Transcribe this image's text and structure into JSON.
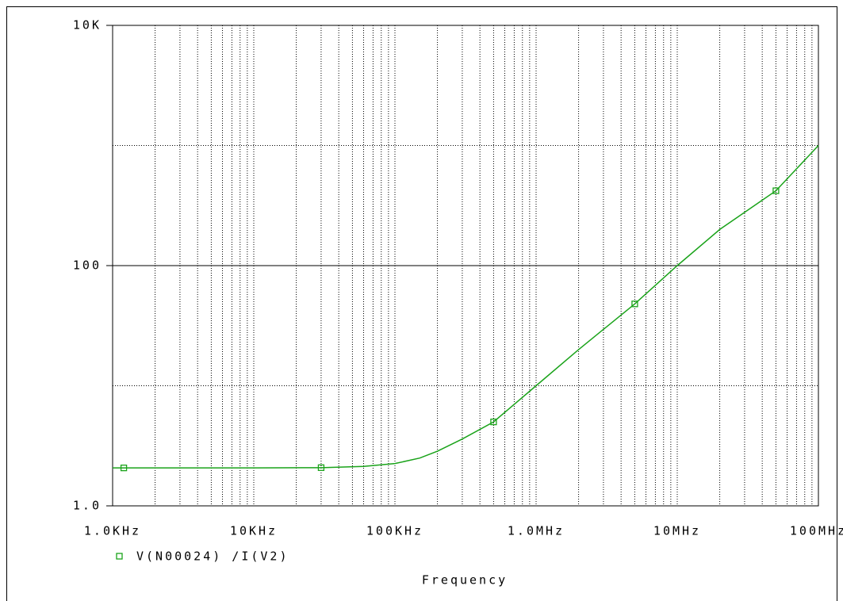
{
  "chart_data": {
    "type": "line",
    "xlabel": "Frequency",
    "xscale": "log",
    "yscale": "log",
    "grid": true,
    "xlim": [
      1000,
      100000000
    ],
    "xticks": [
      {
        "value": 1000,
        "label": "1.0KHz"
      },
      {
        "value": 10000,
        "label": "10KHz"
      },
      {
        "value": 100000,
        "label": "100KHz"
      },
      {
        "value": 1000000,
        "label": "1.0MHz"
      },
      {
        "value": 10000000,
        "label": "10MHz"
      },
      {
        "value": 100000000,
        "label": "100MHz"
      }
    ],
    "ylim": [
      1,
      10000
    ],
    "yticks": [
      {
        "value": 1,
        "label": "1.0"
      },
      100,
      {
        "value": 10000,
        "label": "10K"
      }
    ],
    "series": [
      {
        "name": "V(N00024) /I(V2)",
        "color": "#1aa31a",
        "x": [
          1000,
          10000,
          30000,
          60000,
          100000,
          150000,
          200000,
          300000,
          500000,
          700000,
          1000000,
          2000000,
          5000000,
          10000000,
          20000000,
          50000000,
          100000000
        ],
        "values": [
          2.07,
          2.07,
          2.08,
          2.13,
          2.25,
          2.5,
          2.85,
          3.6,
          5.0,
          7.0,
          10,
          20,
          48,
          100,
          200,
          420,
          1000
        ],
        "markers": {
          "x": [
            1200,
            30000,
            500000,
            5000000,
            50000000
          ],
          "values": [
            2.07,
            2.08,
            5.0,
            48,
            420
          ]
        }
      }
    ]
  }
}
